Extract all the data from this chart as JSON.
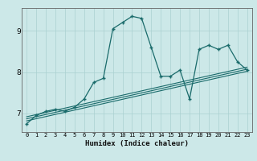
{
  "xlabel": "Humidex (Indice chaleur)",
  "ylabel": "",
  "bg_color": "#cce8e8",
  "line_color": "#1a6b6b",
  "grid_color": "#aad0d0",
  "xlim": [
    -0.5,
    23.5
  ],
  "ylim": [
    6.55,
    9.55
  ],
  "yticks": [
    7,
    8,
    9
  ],
  "xticks": [
    0,
    1,
    2,
    3,
    4,
    5,
    6,
    7,
    8,
    9,
    10,
    11,
    12,
    13,
    14,
    15,
    16,
    17,
    18,
    19,
    20,
    21,
    22,
    23
  ],
  "curve1_x": [
    0,
    1,
    2,
    3,
    4,
    5,
    6,
    7,
    8,
    9,
    10,
    11,
    12,
    13,
    14,
    15,
    16,
    17,
    18,
    19,
    20,
    21,
    22,
    23
  ],
  "curve1_y": [
    6.75,
    6.95,
    7.05,
    7.1,
    7.05,
    7.15,
    7.35,
    7.75,
    7.85,
    9.05,
    9.2,
    9.35,
    9.3,
    8.6,
    7.9,
    7.9,
    8.05,
    7.35,
    8.55,
    8.65,
    8.55,
    8.65,
    8.25,
    8.05
  ],
  "trend1_x": [
    0,
    23
  ],
  "trend1_y": [
    6.82,
    8.02
  ],
  "trend2_x": [
    0,
    23
  ],
  "trend2_y": [
    6.87,
    8.07
  ],
  "trend3_x": [
    0,
    23
  ],
  "trend3_y": [
    6.92,
    8.12
  ]
}
